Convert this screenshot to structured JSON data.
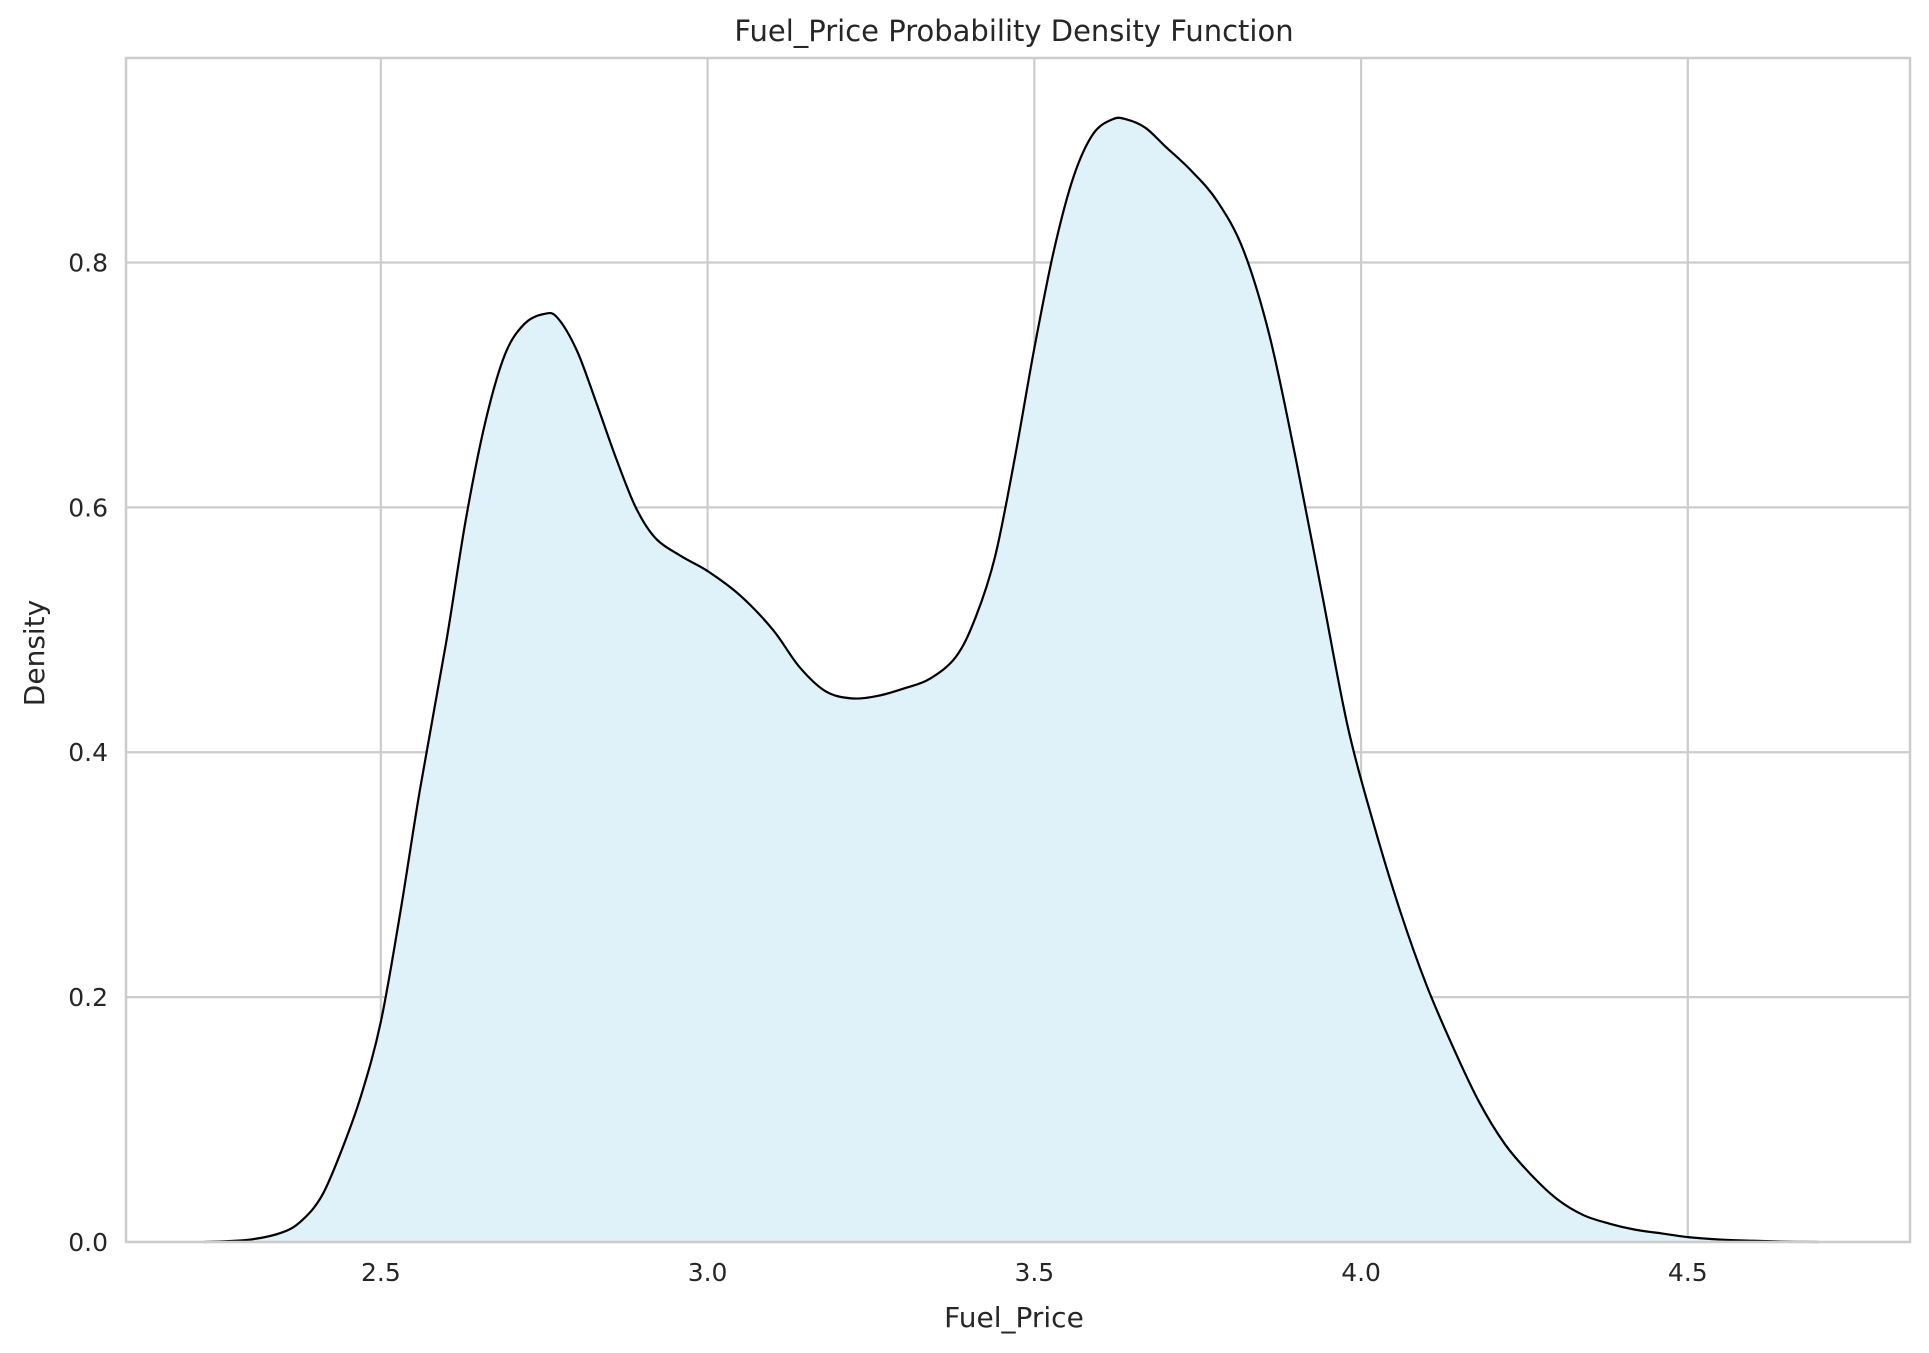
{
  "chart_data": {
    "type": "area",
    "title": "Fuel_Price Probability Density Function",
    "xlabel": "Fuel_Price",
    "ylabel": "Density",
    "xlim": [
      2.11,
      4.84
    ],
    "ylim": [
      0.0,
      0.967
    ],
    "x_ticks": [
      2.5,
      3.0,
      3.5,
      4.0,
      4.5
    ],
    "x_tick_labels": [
      "2.5",
      "3.0",
      "3.5",
      "4.0",
      "4.5"
    ],
    "y_ticks": [
      0.0,
      0.2,
      0.4,
      0.6,
      0.8
    ],
    "y_tick_labels": [
      "0.0",
      "0.2",
      "0.4",
      "0.6",
      "0.8"
    ],
    "grid": true,
    "legend": "none",
    "fill_color": "#dff1f9",
    "line_color": "#000000",
    "series": [
      {
        "x": [
          2.23,
          2.3,
          2.35,
          2.38,
          2.41,
          2.44,
          2.47,
          2.5,
          2.53,
          2.56,
          2.6,
          2.63,
          2.66,
          2.69,
          2.72,
          2.75,
          2.77,
          2.8,
          2.83,
          2.86,
          2.89,
          2.92,
          2.96,
          3.0,
          3.05,
          3.1,
          3.14,
          3.18,
          3.22,
          3.26,
          3.3,
          3.34,
          3.38,
          3.41,
          3.44,
          3.47,
          3.5,
          3.53,
          3.56,
          3.59,
          3.62,
          3.64,
          3.67,
          3.7,
          3.74,
          3.78,
          3.82,
          3.86,
          3.9,
          3.94,
          3.98,
          4.02,
          4.06,
          4.1,
          4.14,
          4.18,
          4.22,
          4.26,
          4.3,
          4.34,
          4.38,
          4.42,
          4.46,
          4.5,
          4.55,
          4.6,
          4.65,
          4.7
        ],
        "y": [
          0.0,
          0.002,
          0.008,
          0.018,
          0.038,
          0.075,
          0.12,
          0.18,
          0.27,
          0.37,
          0.49,
          0.59,
          0.67,
          0.725,
          0.75,
          0.758,
          0.755,
          0.728,
          0.685,
          0.64,
          0.6,
          0.575,
          0.56,
          0.548,
          0.528,
          0.5,
          0.47,
          0.45,
          0.444,
          0.446,
          0.452,
          0.46,
          0.478,
          0.51,
          0.56,
          0.64,
          0.73,
          0.81,
          0.87,
          0.905,
          0.917,
          0.917,
          0.91,
          0.895,
          0.875,
          0.85,
          0.81,
          0.74,
          0.64,
          0.53,
          0.42,
          0.34,
          0.27,
          0.21,
          0.16,
          0.115,
          0.08,
          0.055,
          0.035,
          0.022,
          0.015,
          0.01,
          0.007,
          0.004,
          0.002,
          0.001,
          0.0003,
          0.0
        ]
      }
    ]
  }
}
